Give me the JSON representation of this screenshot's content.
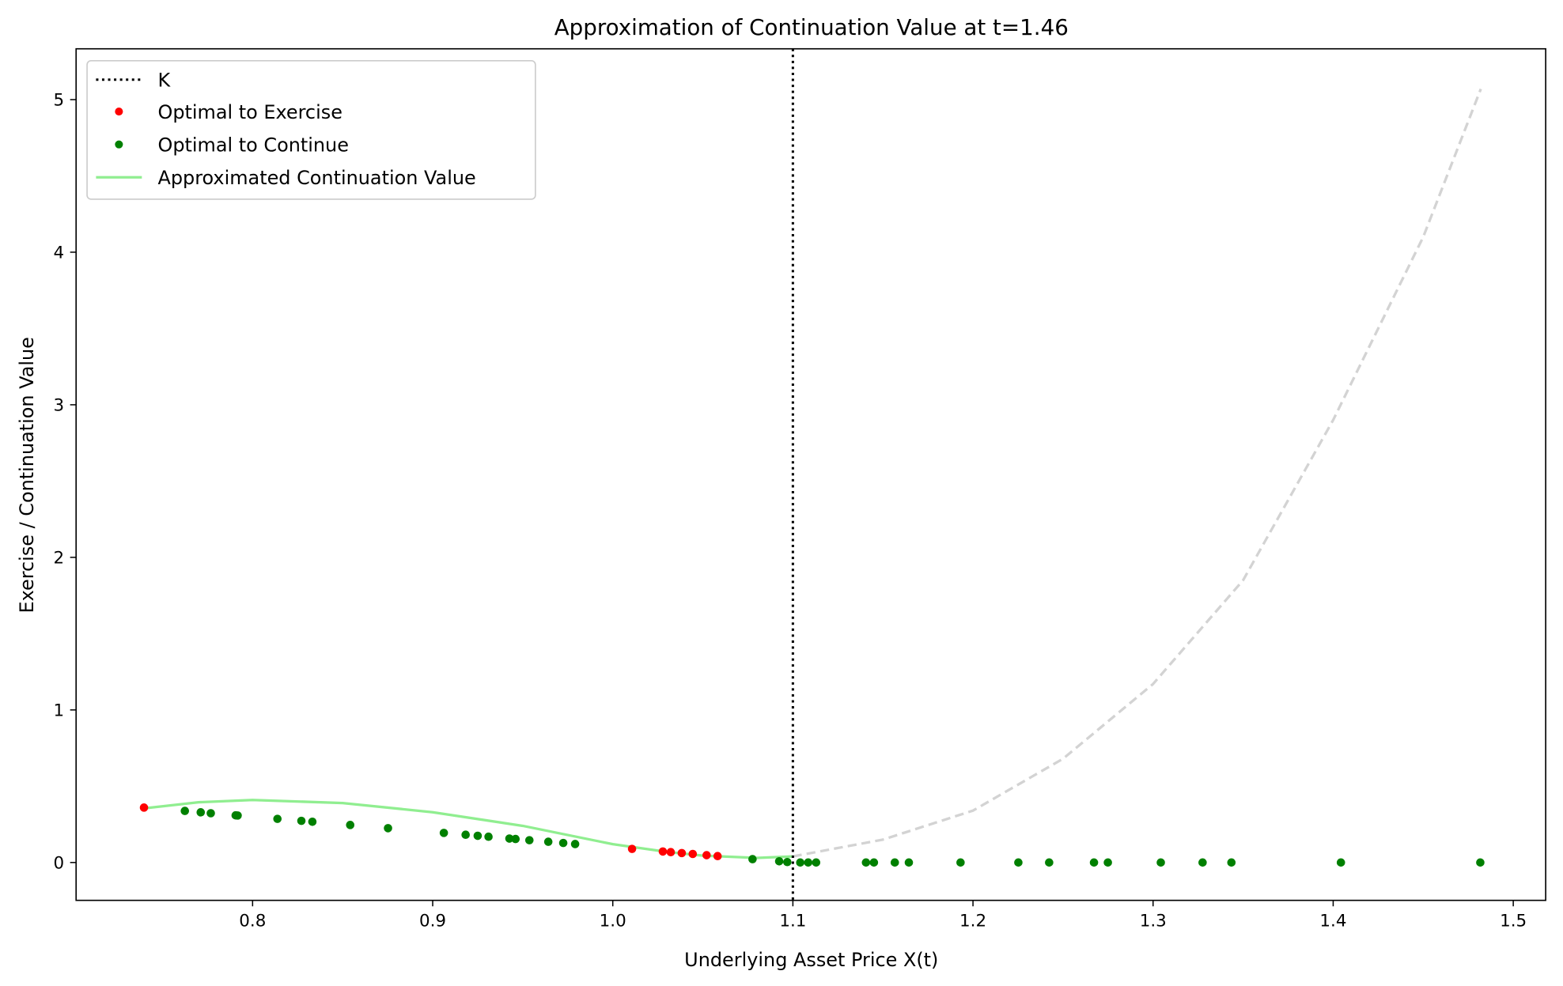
{
  "chart_data": {
    "type": "scatter",
    "title": "Approximation of Continuation Value at t=1.46",
    "xlabel": "Underlying Asset Price X(t)",
    "ylabel": "Exercise / Continuation Value",
    "xlim": [
      0.702,
      1.518
    ],
    "ylim": [
      -0.248,
      5.333
    ],
    "xticks": [
      0.8,
      0.9,
      1.0,
      1.1,
      1.2,
      1.3,
      1.4,
      1.5
    ],
    "xtick_labels": [
      "0.8",
      "0.9",
      "1.0",
      "1.1",
      "1.2",
      "1.3",
      "1.4",
      "1.5"
    ],
    "yticks": [
      0,
      1,
      2,
      3,
      4,
      5
    ],
    "ytick_labels": [
      "0",
      "1",
      "2",
      "3",
      "4",
      "5"
    ],
    "grid": false,
    "legend_position": "top-left",
    "strike": {
      "name": "K",
      "x": 1.1,
      "color": "#000000",
      "style": "dotted"
    },
    "series": [
      {
        "name": "Optimal to Exercise",
        "kind": "points",
        "color": "#ff0000",
        "x": [
          0.7397,
          1.0107,
          1.0278,
          1.0322,
          1.0383,
          1.0444,
          1.0521,
          1.0582
        ],
        "y": [
          0.36,
          0.089,
          0.072,
          0.068,
          0.062,
          0.056,
          0.048,
          0.042
        ]
      },
      {
        "name": "Optimal to Continue",
        "kind": "points",
        "color": "#008000",
        "x": [
          0.7624,
          0.7712,
          0.7768,
          0.7906,
          0.7917,
          0.8138,
          0.8271,
          0.8332,
          0.8542,
          0.8752,
          0.9062,
          0.9183,
          0.925,
          0.931,
          0.9426,
          0.946,
          0.9537,
          0.9642,
          0.9725,
          0.9791,
          1.0776,
          1.0924,
          1.0969,
          1.1041,
          1.1085,
          1.1129,
          1.1406,
          1.145,
          1.1566,
          1.1644,
          1.1931,
          1.2252,
          1.2423,
          1.2672,
          1.2749,
          1.3043,
          1.3275,
          1.3435,
          1.4043,
          1.4817
        ],
        "y": [
          0.338,
          0.329,
          0.323,
          0.309,
          0.308,
          0.286,
          0.273,
          0.267,
          0.246,
          0.225,
          0.194,
          0.182,
          0.175,
          0.169,
          0.157,
          0.154,
          0.146,
          0.136,
          0.128,
          0.121,
          0.022,
          0.008,
          0.003,
          0,
          0,
          0,
          0,
          0,
          0,
          0,
          0,
          0,
          0,
          0,
          0,
          0,
          0,
          0,
          0,
          0
        ]
      },
      {
        "name": "Approximated Continuation Value",
        "kind": "line",
        "color": "#90ee90",
        "x": [
          0.74,
          0.77,
          0.8,
          0.85,
          0.9,
          0.95,
          1.0,
          1.03,
          1.05,
          1.08,
          1.1
        ],
        "y": [
          0.355,
          0.395,
          0.41,
          0.39,
          0.33,
          0.24,
          0.12,
          0.07,
          0.045,
          0.03,
          0.04
        ]
      },
      {
        "name": "extrapolated",
        "kind": "dashed-line",
        "color": "#d3d3d3",
        "x": [
          1.1,
          1.15,
          1.2,
          1.25,
          1.3,
          1.35,
          1.4,
          1.45,
          1.482
        ],
        "y": [
          0.04,
          0.15,
          0.34,
          0.68,
          1.17,
          1.85,
          2.9,
          4.1,
          5.07
        ]
      }
    ]
  }
}
